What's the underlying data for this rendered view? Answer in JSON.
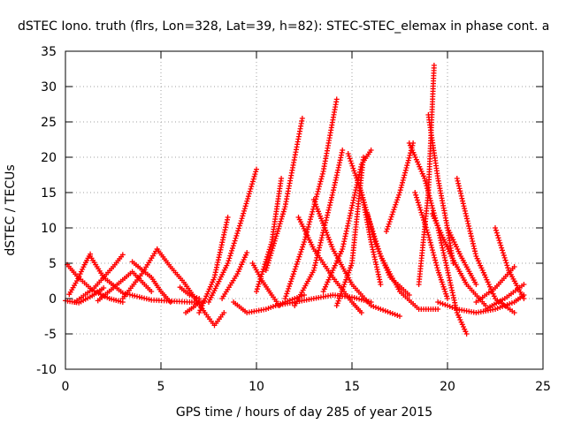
{
  "chart_data": {
    "type": "scatter",
    "title": "dSTEC Iono. truth (flrs, Lon=328, Lat=39, h=82): STEC-STEC_elemax in phase cont. a",
    "xlabel": "GPS time / hours of day 285 of year 2015",
    "ylabel": "dSTEC  / TECUs",
    "xlim": [
      0,
      25
    ],
    "ylim": [
      -10,
      35
    ],
    "xticks": [
      0,
      5,
      10,
      15,
      20,
      25
    ],
    "yticks": [
      -10,
      -5,
      0,
      5,
      10,
      15,
      20,
      25,
      30,
      35
    ],
    "xtick_labels": [
      "0",
      "5",
      "10",
      "15",
      "20",
      "25"
    ],
    "ytick_labels": [
      "-10",
      "-5",
      "0",
      "5",
      "10",
      "15",
      "20",
      "25",
      "30",
      "35"
    ],
    "grid": true,
    "marker": "plus",
    "color": "#ff0000",
    "series": [
      {
        "x": [
          0.0,
          0.7,
          1.4,
          2.0
        ],
        "y": [
          -0.3,
          -0.6,
          0.4,
          1.5
        ]
      },
      {
        "x": [
          0.1,
          0.6,
          1.4,
          2.3,
          3.0
        ],
        "y": [
          4.8,
          3.2,
          1.2,
          0.0,
          -0.5
        ]
      },
      {
        "x": [
          0.2,
          0.6,
          1.0,
          1.3
        ],
        "y": [
          0.6,
          2.5,
          4.8,
          6.3
        ]
      },
      {
        "x": [
          1.3,
          2.0,
          3.0,
          4.5,
          6.5,
          7.2
        ],
        "y": [
          6.0,
          3.0,
          0.8,
          -0.2,
          -0.5,
          -0.5
        ]
      },
      {
        "x": [
          0.5,
          1.5,
          2.5,
          3.0
        ],
        "y": [
          -0.5,
          1.5,
          4.5,
          6.2
        ]
      },
      {
        "x": [
          1.7,
          2.5,
          3.5,
          4.5
        ],
        "y": [
          -0.3,
          1.5,
          3.8,
          1.0
        ]
      },
      {
        "x": [
          3.5,
          4.5,
          5.0,
          5.5
        ],
        "y": [
          5.2,
          3.0,
          1.0,
          -0.5
        ]
      },
      {
        "x": [
          3.0,
          4.0,
          4.8
        ],
        "y": [
          0.0,
          3.5,
          7.0
        ]
      },
      {
        "x": [
          4.8,
          5.5,
          6.2,
          6.8,
          7.3,
          7.8,
          8.3
        ],
        "y": [
          7.0,
          4.5,
          2.3,
          0.0,
          -2.0,
          -3.8,
          -2.0
        ]
      },
      {
        "x": [
          6.0,
          6.5,
          7.0
        ],
        "y": [
          1.6,
          0.5,
          0.0
        ]
      },
      {
        "x": [
          6.3,
          6.8,
          7.0
        ],
        "y": [
          -2.0,
          -1.0,
          -0.5
        ]
      },
      {
        "x": [
          7.0,
          7.8,
          8.5
        ],
        "y": [
          -2.0,
          3.0,
          11.5
        ]
      },
      {
        "x": [
          7.5,
          8.5,
          9.2,
          10.0
        ],
        "y": [
          -0.5,
          5.0,
          11.0,
          18.3
        ]
      },
      {
        "x": [
          8.2,
          9.0,
          9.5
        ],
        "y": [
          0.0,
          3.5,
          6.5
        ]
      },
      {
        "x": [
          8.8,
          9.5,
          10.5,
          11.5,
          12.5
        ],
        "y": [
          -0.5,
          -2.0,
          -1.5,
          -0.5,
          0.5
        ]
      },
      {
        "x": [
          9.8,
          10.3,
          10.8,
          11.2
        ],
        "y": [
          5.0,
          2.5,
          0.5,
          -1.0
        ]
      },
      {
        "x": [
          10.0,
          10.8,
          11.3
        ],
        "y": [
          1.0,
          8.0,
          17.0
        ]
      },
      {
        "x": [
          10.5,
          11.5,
          12.4
        ],
        "y": [
          4.0,
          13.0,
          25.5
        ]
      },
      {
        "x": [
          11.0,
          12.0,
          13.0,
          14.0,
          15.0,
          16.0
        ],
        "y": [
          -1.0,
          -0.5,
          0.0,
          0.5,
          0.2,
          -0.5
        ]
      },
      {
        "x": [
          11.5,
          12.5,
          13.5,
          14.2
        ],
        "y": [
          0.0,
          8.0,
          18.0,
          28.2
        ]
      },
      {
        "x": [
          12.0,
          13.0,
          14.0,
          14.5
        ],
        "y": [
          -1.0,
          4.0,
          15.0,
          21.0
        ]
      },
      {
        "x": [
          12.2,
          13.0,
          14.0,
          15.0,
          15.5
        ],
        "y": [
          11.5,
          7.0,
          3.0,
          -0.5,
          -2.0
        ]
      },
      {
        "x": [
          13.0,
          14.0,
          15.0,
          16.0,
          17.0,
          17.5
        ],
        "y": [
          14.0,
          7.0,
          2.0,
          -1.0,
          -2.0,
          -2.5
        ]
      },
      {
        "x": [
          13.5,
          14.5,
          15.5,
          16.0
        ],
        "y": [
          1.0,
          7.0,
          19.0,
          21.0
        ]
      },
      {
        "x": [
          14.2,
          15.0,
          15.6
        ],
        "y": [
          -1.0,
          5.0,
          20.0
        ]
      },
      {
        "x": [
          14.8,
          15.5,
          16.0,
          16.5
        ],
        "y": [
          20.5,
          15.0,
          8.0,
          2.0
        ]
      },
      {
        "x": [
          15.5,
          16.2,
          17.0,
          18.0
        ],
        "y": [
          15.0,
          8.0,
          3.0,
          0.5
        ]
      },
      {
        "x": [
          15.8,
          16.5,
          17.5,
          18.5,
          19.5
        ],
        "y": [
          12.0,
          6.0,
          1.0,
          -1.5,
          -1.5
        ]
      },
      {
        "x": [
          16.8,
          17.5,
          18.2
        ],
        "y": [
          9.5,
          15.0,
          22.0
        ]
      },
      {
        "x": [
          18.0,
          18.8,
          19.5,
          20.0,
          20.5,
          21.0
        ],
        "y": [
          22.0,
          17.0,
          10.0,
          4.0,
          -2.0,
          -5.0
        ]
      },
      {
        "x": [
          18.3,
          19.0,
          19.5,
          20.0
        ],
        "y": [
          15.0,
          9.0,
          4.0,
          0.0
        ]
      },
      {
        "x": [
          18.5,
          19.0,
          19.3
        ],
        "y": [
          2.0,
          15.0,
          33.0
        ]
      },
      {
        "x": [
          19.0,
          19.5,
          20.0,
          20.3
        ],
        "y": [
          26.0,
          17.0,
          10.0,
          5.0
        ]
      },
      {
        "x": [
          19.2,
          20.2,
          21.0,
          22.0
        ],
        "y": [
          12.0,
          6.0,
          2.0,
          -1.0
        ]
      },
      {
        "x": [
          20.0,
          20.7,
          21.5
        ],
        "y": [
          10.0,
          6.0,
          2.0
        ]
      },
      {
        "x": [
          20.5,
          21.5,
          22.5,
          23.5
        ],
        "y": [
          17.0,
          6.0,
          0.0,
          -2.0
        ]
      },
      {
        "x": [
          19.5,
          20.5,
          21.5,
          22.5,
          23.5,
          24.0
        ],
        "y": [
          -0.5,
          -1.5,
          -2.0,
          -1.5,
          -0.5,
          0.5
        ]
      },
      {
        "x": [
          22.5,
          23.2,
          24.0
        ],
        "y": [
          10.0,
          4.0,
          0.0
        ]
      },
      {
        "x": [
          21.5,
          22.5,
          23.5
        ],
        "y": [
          -0.5,
          1.5,
          4.5
        ]
      },
      {
        "x": [
          22.0,
          23.0,
          24.0
        ],
        "y": [
          -1.5,
          0.0,
          2.0
        ]
      }
    ]
  }
}
